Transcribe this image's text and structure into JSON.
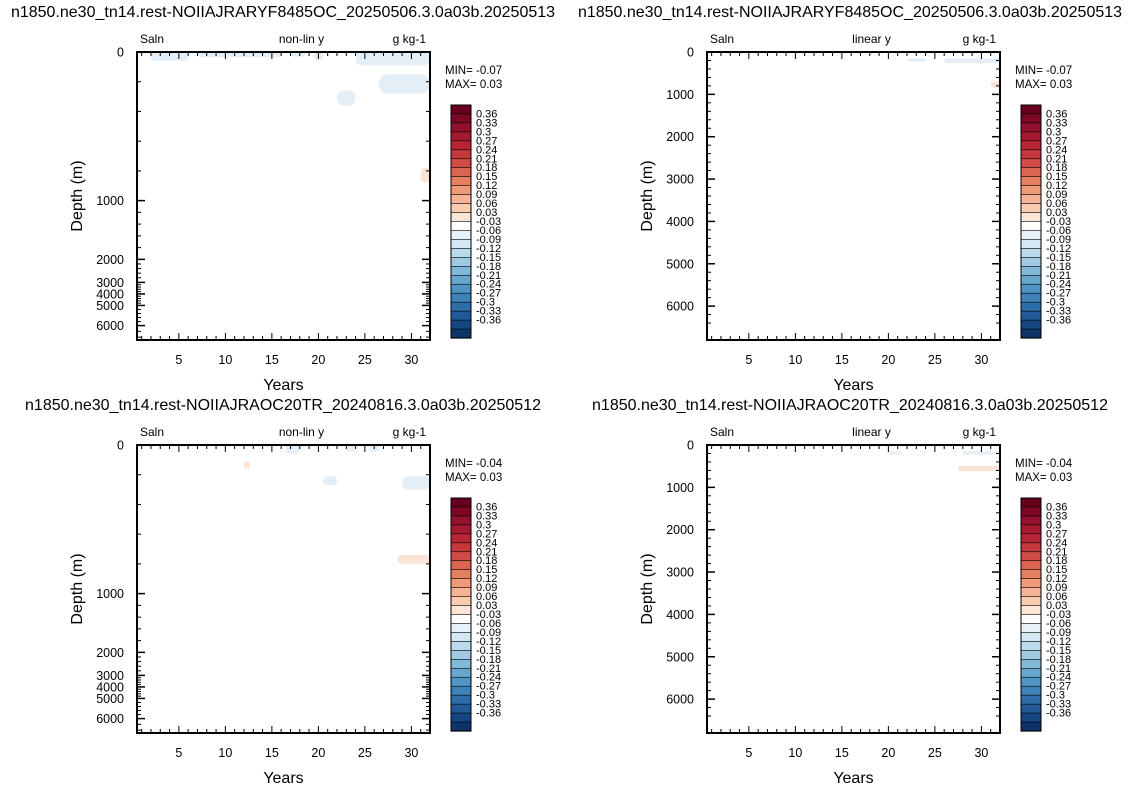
{
  "chart_data": [
    {
      "type": "heatmap",
      "title": "n1850.ne30_tn14.rest-NOIIAJRARYF8485OC_20250506.3.0a03b.20250513",
      "left_label": "Saln",
      "center_label": "non-lin y",
      "right_label": "g kg-1",
      "xlabel": "Years",
      "ylabel": "Depth (m)",
      "y_scale": "non-linear",
      "xlim": [
        0.5,
        32
      ],
      "x_ticks": [
        5,
        10,
        15,
        20,
        25,
        30
      ],
      "y_ticks": [
        "0",
        "1000",
        "2000",
        "3000",
        "4000",
        "5000",
        "6000"
      ],
      "y_tick_values": [
        0,
        1000,
        2000,
        3000,
        4000,
        5000,
        6000
      ],
      "stats": {
        "min": "MIN= -0.07",
        "max": "MAX=  0.03"
      },
      "features": [
        {
          "sign": "neg",
          "x": [
            2.0,
            6.0
          ],
          "depth": [
            0,
            60
          ]
        },
        {
          "sign": "neg",
          "x": [
            7.0,
            16.0
          ],
          "depth": [
            0,
            35
          ]
        },
        {
          "sign": "neg",
          "x": [
            17.0,
            18.5
          ],
          "depth": [
            0,
            30
          ]
        },
        {
          "sign": "neg",
          "x": [
            19.5,
            20.5
          ],
          "depth": [
            0,
            55
          ]
        },
        {
          "sign": "neg",
          "x": [
            24.0,
            32.0
          ],
          "depth": [
            0,
            90
          ]
        },
        {
          "sign": "neg",
          "x": [
            26.5,
            32.0
          ],
          "depth": [
            150,
            280
          ]
        },
        {
          "sign": "neg",
          "x": [
            22.0,
            24.0
          ],
          "depth": [
            260,
            360
          ]
        },
        {
          "sign": "pos",
          "x": [
            31.0,
            32.0
          ],
          "depth": [
            780,
            880
          ]
        }
      ]
    },
    {
      "type": "heatmap",
      "title": "n1850.ne30_tn14.rest-NOIIAJRARYF8485OC_20250506.3.0a03b.20250513",
      "left_label": "Saln",
      "center_label": "linear y",
      "right_label": "g kg-1",
      "xlabel": "Years",
      "ylabel": "Depth (m)",
      "y_scale": "linear",
      "xlim": [
        0.5,
        32
      ],
      "x_ticks": [
        5,
        10,
        15,
        20,
        25,
        30
      ],
      "y_ticks": [
        "0",
        "1000",
        "2000",
        "3000",
        "4000",
        "5000",
        "6000"
      ],
      "y_tick_values": [
        0,
        1000,
        2000,
        3000,
        4000,
        5000,
        6000
      ],
      "stats": {
        "min": "MIN= -0.07",
        "max": "MAX=  0.03"
      },
      "features": [
        {
          "sign": "neg",
          "x": [
            22.0,
            24.0
          ],
          "depth": [
            150,
            210
          ]
        },
        {
          "sign": "neg",
          "x": [
            26.0,
            32.0
          ],
          "depth": [
            150,
            260
          ]
        },
        {
          "sign": "pos",
          "x": [
            31.0,
            32.0
          ],
          "depth": [
            700,
            850
          ]
        }
      ]
    },
    {
      "type": "heatmap",
      "title": "n1850.ne30_tn14.rest-NOIIAJRAOC20TR_20240816.3.0a03b.20250512",
      "left_label": "Saln",
      "center_label": "non-lin y",
      "right_label": "g kg-1",
      "xlabel": "Years",
      "ylabel": "Depth (m)",
      "y_scale": "non-linear",
      "xlim": [
        0.5,
        32
      ],
      "x_ticks": [
        5,
        10,
        15,
        20,
        25,
        30
      ],
      "y_ticks": [
        "0",
        "1000",
        "2000",
        "3000",
        "4000",
        "5000",
        "6000"
      ],
      "y_tick_values": [
        0,
        1000,
        2000,
        3000,
        4000,
        5000,
        6000
      ],
      "stats": {
        "min": "MIN= -0.04",
        "max": "MAX=  0.03"
      },
      "features": [
        {
          "sign": "neg",
          "x": [
            16.5,
            18.0
          ],
          "depth": [
            0,
            60
          ]
        },
        {
          "sign": "neg",
          "x": [
            23.0,
            24.0
          ],
          "depth": [
            0,
            40
          ]
        },
        {
          "sign": "neg",
          "x": [
            25.5,
            26.5
          ],
          "depth": [
            0,
            45
          ]
        },
        {
          "sign": "pos",
          "x": [
            12.0,
            12.6
          ],
          "depth": [
            110,
            160
          ]
        },
        {
          "sign": "neg",
          "x": [
            20.5,
            22.0
          ],
          "depth": [
            210,
            270
          ]
        },
        {
          "sign": "neg",
          "x": [
            29.0,
            32.0
          ],
          "depth": [
            210,
            300
          ]
        },
        {
          "sign": "pos",
          "x": [
            28.5,
            32.0
          ],
          "depth": [
            740,
            800
          ]
        }
      ]
    },
    {
      "type": "heatmap",
      "title": "n1850.ne30_tn14.rest-NOIIAJRAOC20TR_20240816.3.0a03b.20250512",
      "left_label": "Saln",
      "center_label": "linear y",
      "right_label": "g kg-1",
      "xlabel": "Years",
      "ylabel": "Depth (m)",
      "y_scale": "linear",
      "xlim": [
        0.5,
        32
      ],
      "x_ticks": [
        5,
        10,
        15,
        20,
        25,
        30
      ],
      "y_ticks": [
        "0",
        "1000",
        "2000",
        "3000",
        "4000",
        "5000",
        "6000"
      ],
      "y_tick_values": [
        0,
        1000,
        2000,
        3000,
        4000,
        5000,
        6000
      ],
      "stats": {
        "min": "MIN= -0.04",
        "max": "MAX=  0.03"
      },
      "features": [
        {
          "sign": "neg",
          "x": [
            20.0,
            21.5
          ],
          "depth": [
            150,
            220
          ]
        },
        {
          "sign": "neg",
          "x": [
            28.0,
            32.0
          ],
          "depth": [
            150,
            220
          ]
        },
        {
          "sign": "pos",
          "x": [
            27.5,
            32.0
          ],
          "depth": [
            500,
            620
          ]
        }
      ]
    }
  ],
  "colorbar": {
    "labels": [
      "0.36",
      "0.33",
      "0.3",
      "0.27",
      "0.24",
      "0.21",
      "0.18",
      "0.15",
      "0.12",
      "0.09",
      "0.06",
      "0.03",
      "-0.03",
      "-0.06",
      "-0.09",
      "-0.12",
      "-0.15",
      "-0.18",
      "-0.21",
      "-0.24",
      "-0.27",
      "-0.3",
      "-0.33",
      "-0.36"
    ],
    "colors": [
      "#67001f",
      "#7c0826",
      "#92112d",
      "#a61a31",
      "#b82535",
      "#c5383c",
      "#d14c47",
      "#dc6453",
      "#e67f61",
      "#ee9a78",
      "#f4b397",
      "#f9cbb0",
      "#fbe5d7",
      "#ffffff",
      "#e8f1f7",
      "#d4e7f2",
      "#bbdaeb",
      "#9fcae2",
      "#83b9d8",
      "#67a7ce",
      "#4e95c3",
      "#3d83b9",
      "#2e6ea8",
      "#215a96",
      "#164682",
      "#0d3368"
    ],
    "neg_light": "#e3eef6",
    "pos_light": "#fbe3d6"
  }
}
